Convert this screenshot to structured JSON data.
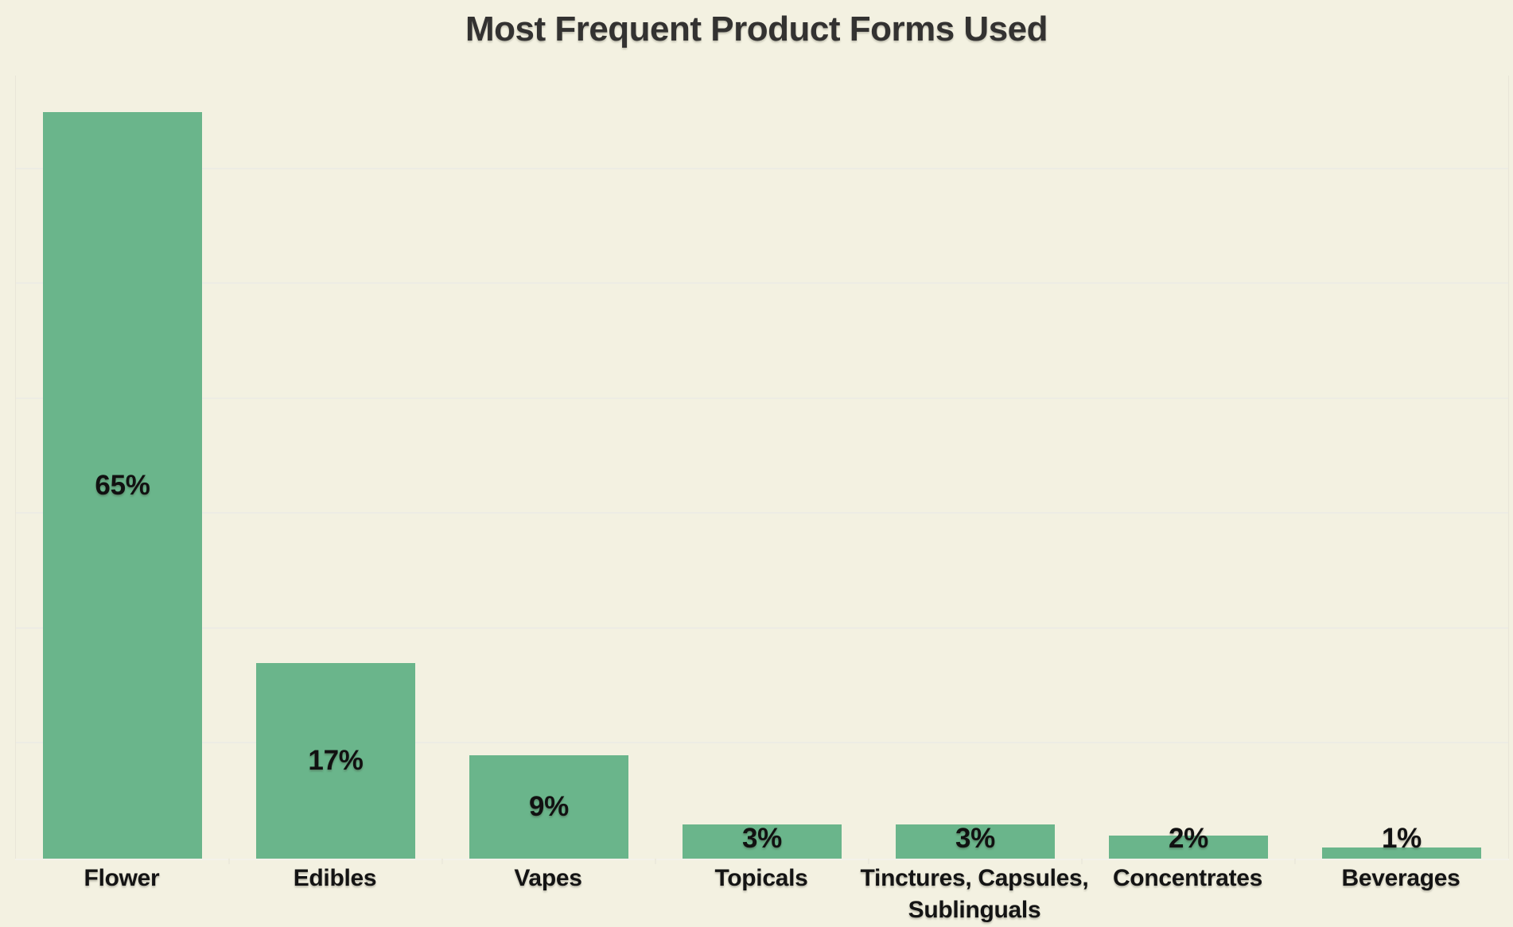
{
  "page": {
    "background_color": "#f3f1e1"
  },
  "chart_data": {
    "type": "bar",
    "title": "Most Frequent Product Forms Used",
    "categories": [
      "Flower",
      "Edibles",
      "Vapes",
      "Topicals",
      "Tinctures, Capsules,\nSublinguals",
      "Concentrates",
      "Beverages"
    ],
    "values": [
      65,
      17,
      9,
      3,
      3,
      2,
      1
    ],
    "value_labels": [
      "65%",
      "17%",
      "9%",
      "3%",
      "3%",
      "2%",
      "1%"
    ],
    "unit": "percent",
    "xlabel": "",
    "ylabel": "",
    "ylim": [
      0,
      68
    ],
    "gridlines_pct": [
      10,
      20,
      30,
      40,
      50,
      60
    ],
    "grid": "horizontal, no tick labels",
    "legend": "none",
    "colors": {
      "bar": "#6ab58b",
      "background": "#f3f1e1",
      "title_text": "#333231",
      "label_text": "#111111",
      "gridline": "#edece4",
      "axis_line": "#f3f2ea",
      "plot_border": "#e9e6d8"
    }
  }
}
